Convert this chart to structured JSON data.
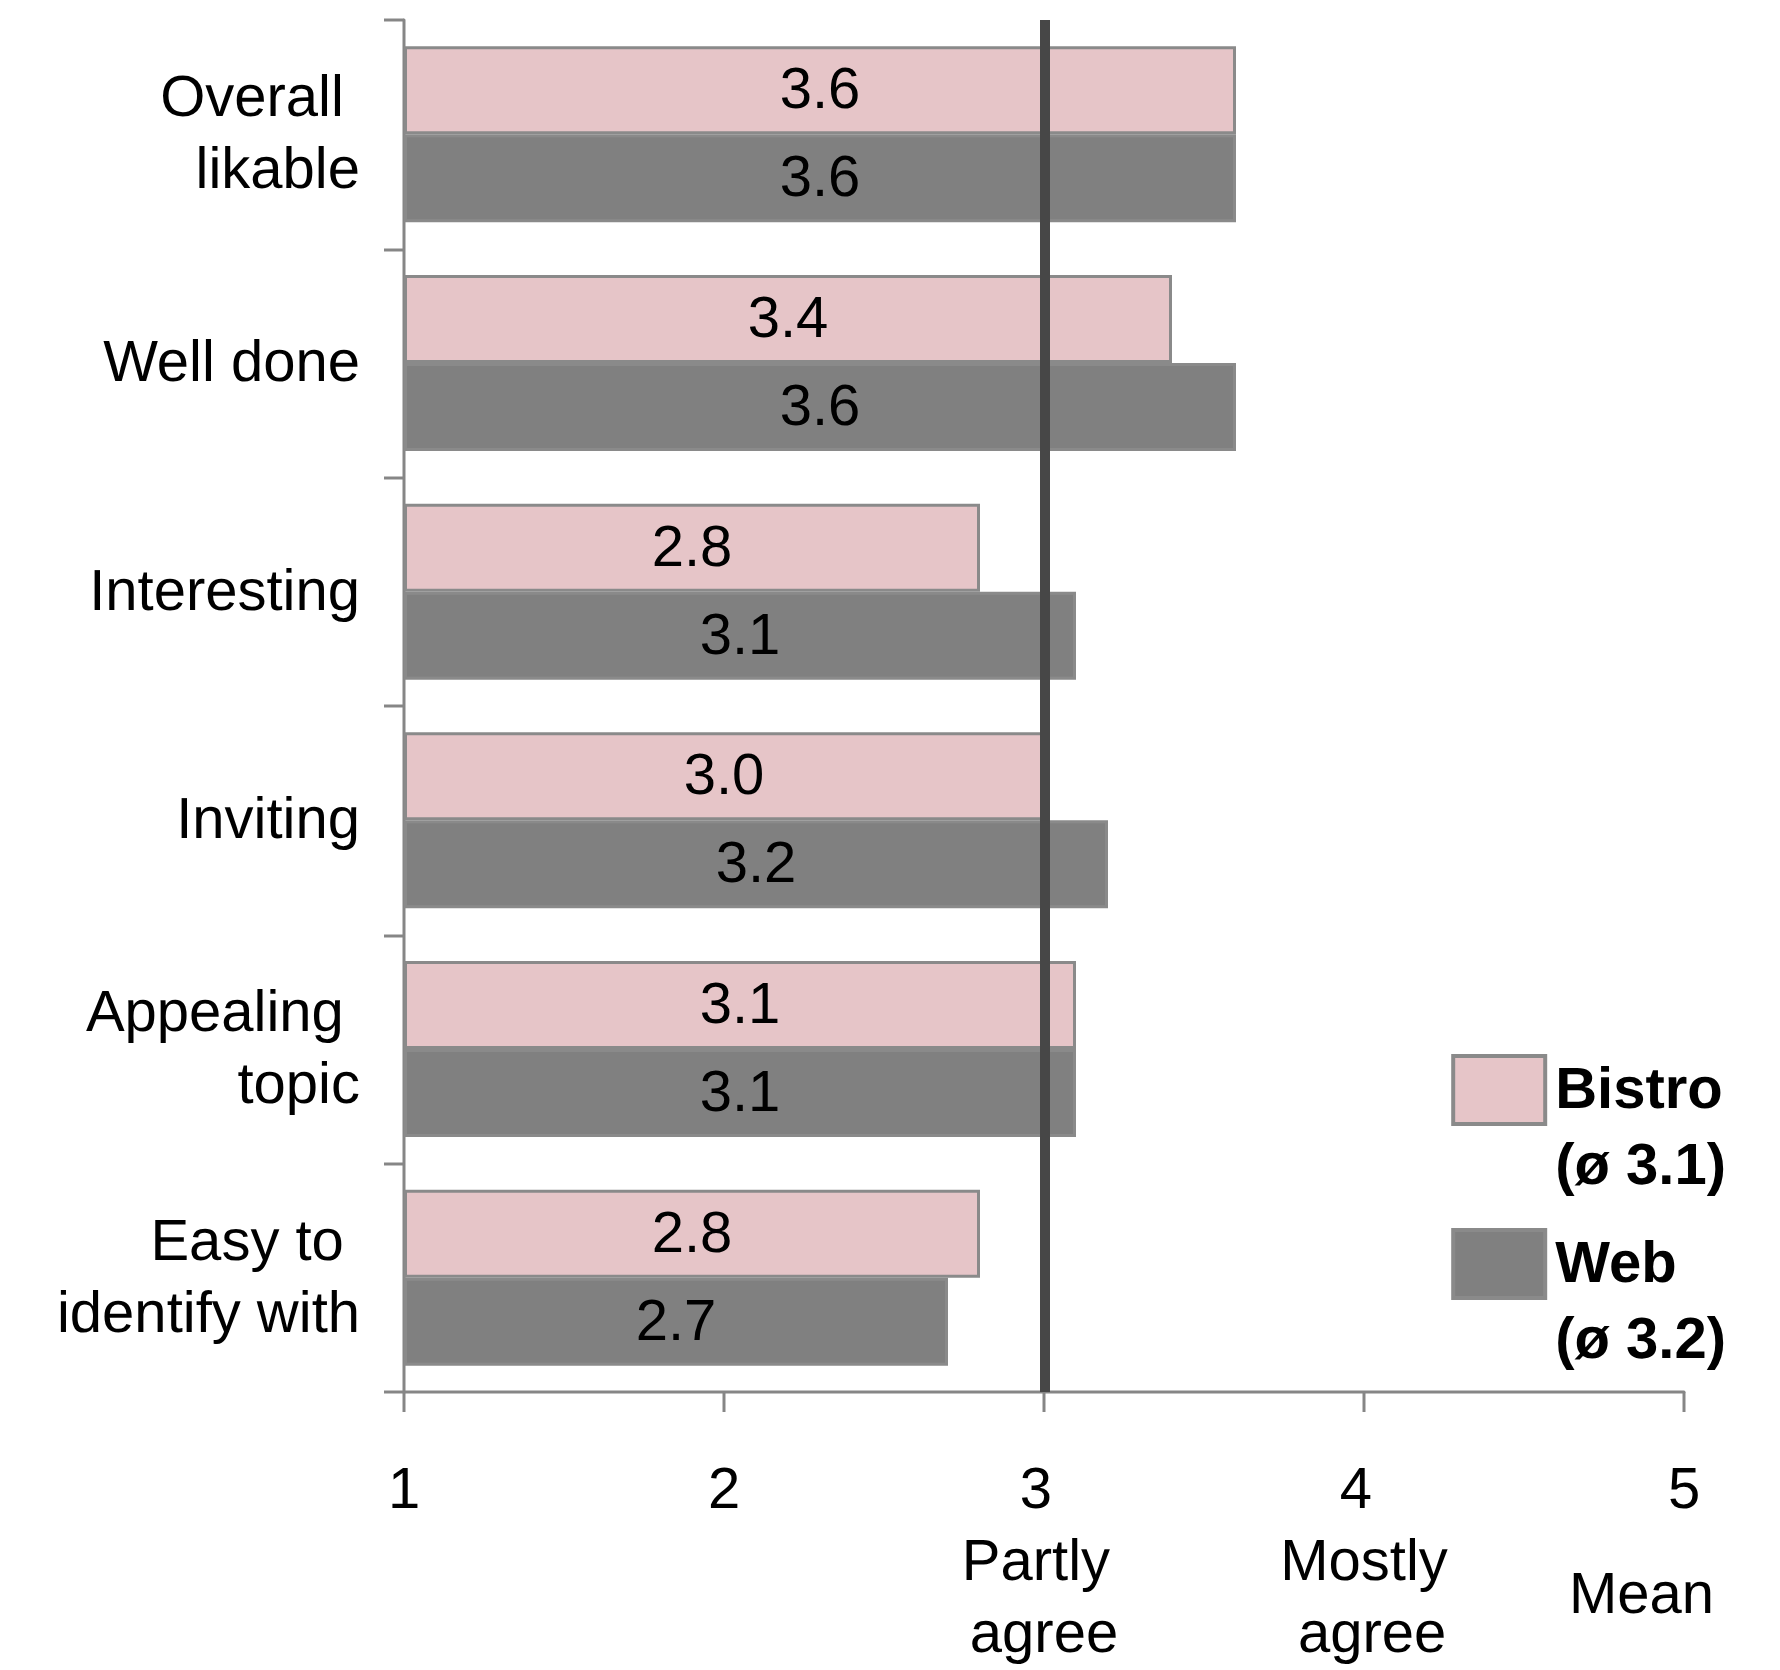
{
  "chart_data": {
    "type": "bar",
    "orientation": "horizontal",
    "categories": [
      "Overall likable",
      "Well done",
      "Interesting",
      "Inviting",
      "Appealing topic",
      "Easy to identify with"
    ],
    "series": [
      {
        "name": "Bistro (ø 3.1)",
        "color": "#e6c5c8",
        "values": [
          3.6,
          3.4,
          2.8,
          3.0,
          3.1,
          2.8
        ],
        "value_labels": [
          "3.6",
          "3.4",
          "2.8",
          "3.0",
          "3.1",
          "2.8"
        ]
      },
      {
        "name": "Web (ø 3.2)",
        "color": "#808080",
        "values": [
          3.6,
          3.6,
          3.1,
          3.2,
          3.1,
          2.7
        ],
        "value_labels": [
          "3.6",
          "3.6",
          "3.1",
          "3.2",
          "3.1",
          "2.7"
        ]
      }
    ],
    "xlabel": "Mean",
    "xlim": [
      1,
      5
    ],
    "xticks": [
      1,
      2,
      {
        "value": 3,
        "label": "3 Partly agree"
      },
      {
        "value": 4,
        "label": "4 Mostly agree"
      },
      5
    ],
    "ref_lines": [
      {
        "axis": "x",
        "value": 3,
        "color": "#474747"
      }
    ],
    "legend": "bottom right"
  }
}
